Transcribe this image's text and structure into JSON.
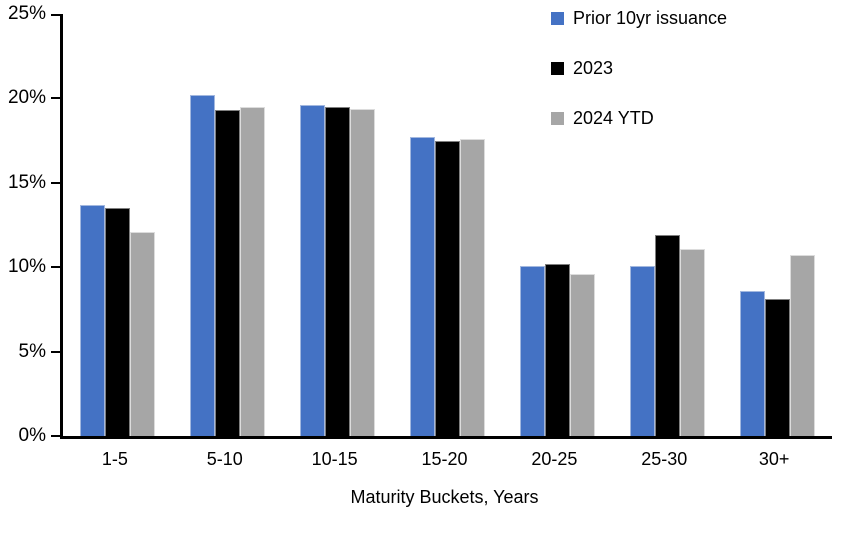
{
  "chart_data": {
    "type": "bar",
    "categories": [
      "1-5",
      "5-10",
      "10-15",
      "15-20",
      "20-25",
      "25-30",
      "30+"
    ],
    "series": [
      {
        "name": "Prior 10yr issuance",
        "color": "#4472C4",
        "border_color": "#A3B8DF",
        "values": [
          13.7,
          20.2,
          19.6,
          17.7,
          10.1,
          10.1,
          8.6
        ]
      },
      {
        "name": "2023",
        "color": "#000000",
        "border_color": "#7F7F7F",
        "values": [
          13.5,
          19.3,
          19.5,
          17.5,
          10.2,
          11.9,
          8.1
        ]
      },
      {
        "name": "2024 YTD",
        "color": "#A6A6A6",
        "border_color": "#DCDCDC",
        "values": [
          12.1,
          19.5,
          19.4,
          17.6,
          9.6,
          11.1,
          10.7
        ]
      }
    ],
    "title": "",
    "xlabel": "Maturity Buckets, Years",
    "ylabel": "",
    "ylim": [
      0,
      25
    ],
    "ytick_step": 5,
    "ytick_labels": [
      "0%",
      "5%",
      "10%",
      "15%",
      "20%",
      "25%"
    ],
    "grid": false,
    "legend_position": "top-right",
    "axis_color": "#000000"
  }
}
